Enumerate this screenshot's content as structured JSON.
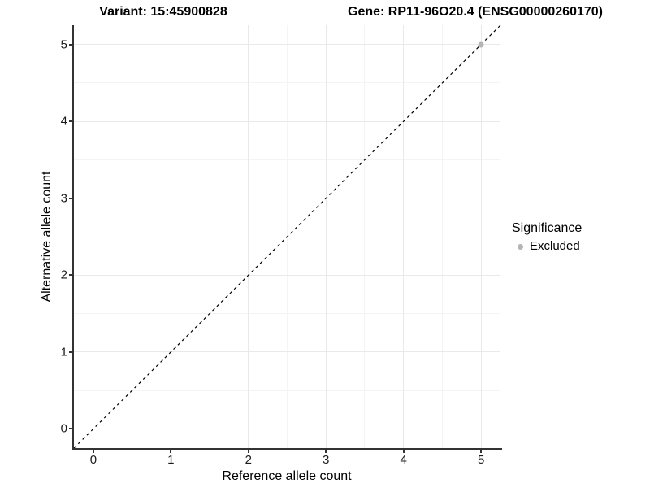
{
  "header": {
    "variant_title": "Variant: 15:45900828",
    "gene_title": "Gene: RP11-96O20.4 (ENSG00000260170)"
  },
  "legend": {
    "title": "Significance",
    "items": [
      {
        "label": "Excluded",
        "color": "#b5b5b5"
      }
    ]
  },
  "chart_data": {
    "type": "scatter",
    "title": "Variant: 15:45900828  |  Gene: RP11-96O20.4 (ENSG00000260170)",
    "xlabel": "Reference allele count",
    "ylabel": "Alternative allele count",
    "xlim": [
      0,
      5
    ],
    "ylim": [
      0,
      5
    ],
    "x_ticks": [
      0,
      1,
      2,
      3,
      4,
      5
    ],
    "y_ticks": [
      0,
      1,
      2,
      3,
      4,
      5
    ],
    "axis_expansion": 0.25,
    "grid": {
      "major": true,
      "minor": true
    },
    "legend_position": "right",
    "series": [
      {
        "name": "Excluded",
        "color": "#b5b5b5",
        "points": [
          {
            "x": 5,
            "y": 5
          }
        ]
      }
    ],
    "reference_line": {
      "type": "identity",
      "style": "dashed",
      "color": "#000000"
    }
  },
  "colors": {
    "background": "#ffffff",
    "grid_major": "#e9e9e9",
    "grid_minor": "#f4f4f4",
    "axis_line": "#333333",
    "tick_label": "#1a1a1a",
    "dashed_line": "#000000",
    "excluded_point": "#b5b5b5"
  }
}
